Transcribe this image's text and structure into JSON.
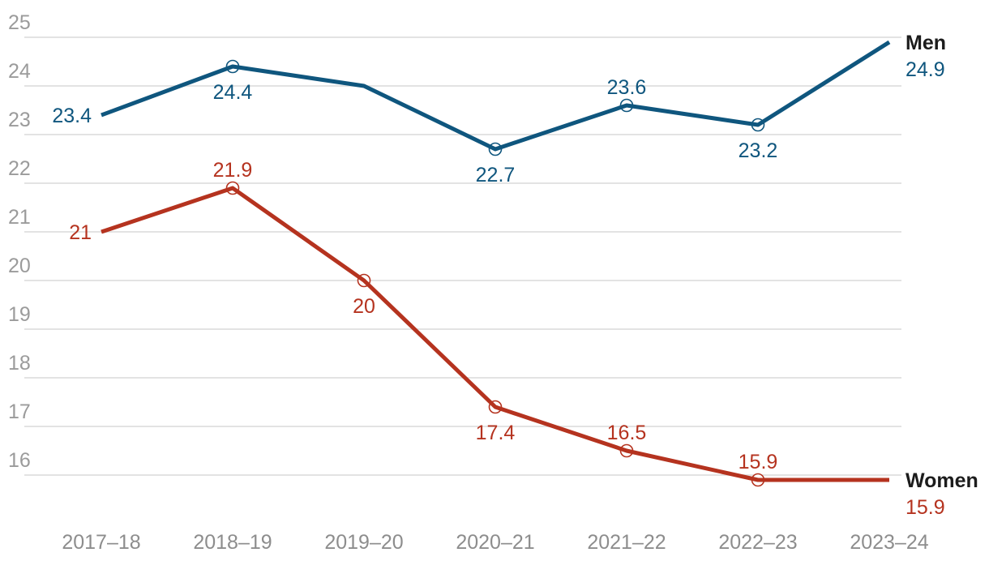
{
  "chart_data": {
    "type": "line",
    "title": "",
    "xlabel": "",
    "ylabel": "",
    "categories": [
      "2017–18",
      "2018–19",
      "2019–20",
      "2020–21",
      "2021–22",
      "2022–23",
      "2023–24"
    ],
    "series": [
      {
        "name": "Men",
        "color": "#0f567e",
        "values": [
          23.4,
          24.4,
          24,
          22.7,
          23.6,
          23.2,
          24.9
        ],
        "point_labels": [
          "23.4",
          "24.4",
          null,
          "22.7",
          "23.6",
          "23.2",
          null
        ],
        "label_pos": [
          "left",
          "below",
          null,
          "below",
          "above",
          "below",
          null
        ],
        "markers": [
          false,
          true,
          false,
          true,
          true,
          true,
          false
        ],
        "end_label": {
          "name": "Men",
          "value": "24.9"
        }
      },
      {
        "name": "Women",
        "color": "#b5331f",
        "values": [
          21,
          21.9,
          20,
          17.4,
          16.5,
          15.9,
          15.9
        ],
        "point_labels": [
          "21",
          "21.9",
          "20",
          "17.4",
          "16.5",
          "15.9",
          null
        ],
        "label_pos": [
          "left",
          "above",
          "below",
          "below",
          "above",
          "above",
          null
        ],
        "markers": [
          false,
          true,
          true,
          true,
          true,
          true,
          false
        ],
        "end_label": {
          "name": "Women",
          "value": "15.9"
        }
      }
    ],
    "yticks": [
      16,
      17,
      18,
      19,
      20,
      21,
      22,
      23,
      24,
      25
    ],
    "ylim": [
      15.4,
      25.4
    ],
    "grid": "horizontal",
    "legend_position": "line-end-right",
    "colors": {
      "grid": "#e3e3e3",
      "y_tick_label": "#9b9b9b",
      "x_tick_label": "#8d8d8d",
      "series_name_text": "#1c1c1c",
      "background": "#ffffff"
    }
  }
}
